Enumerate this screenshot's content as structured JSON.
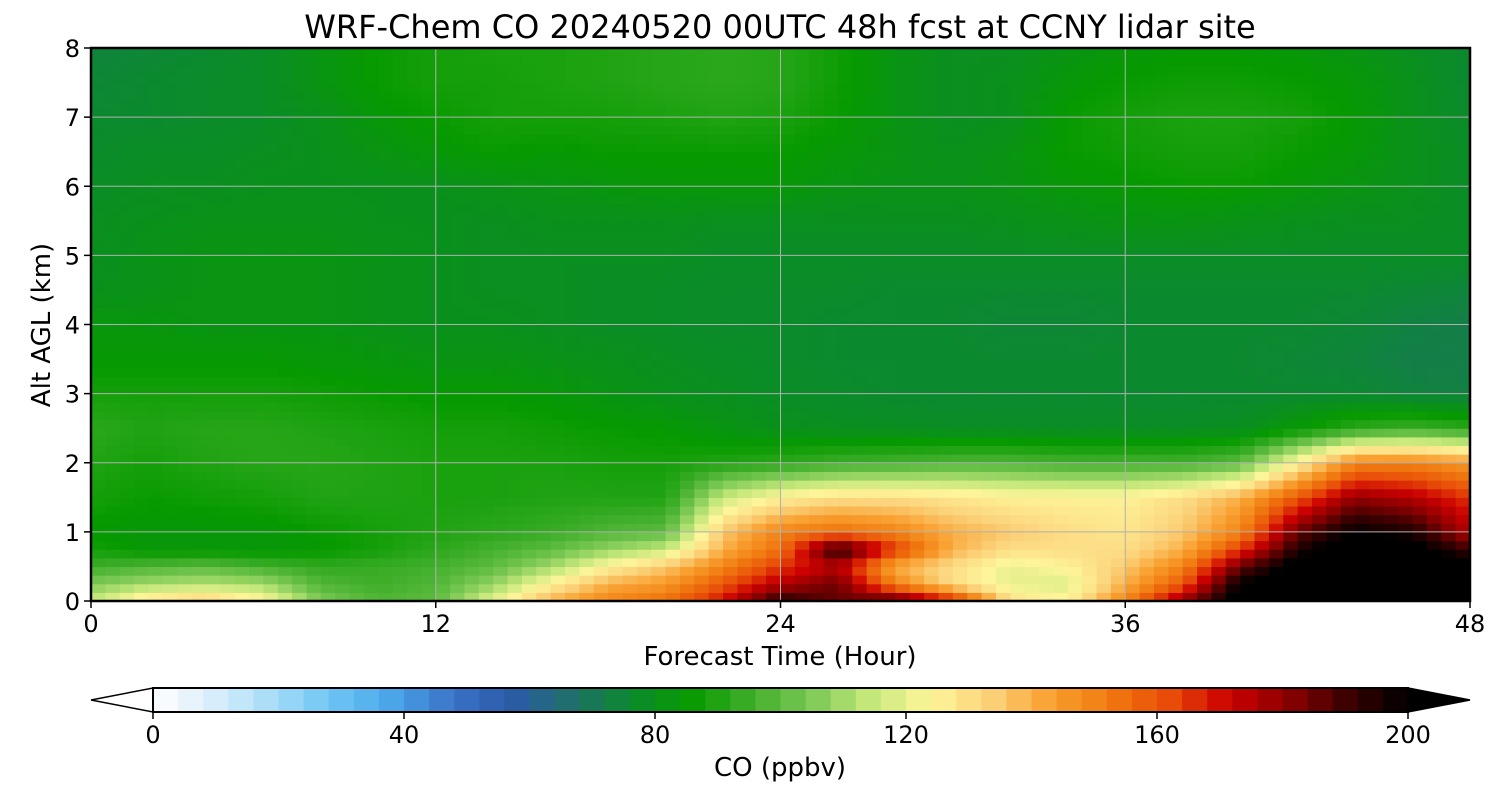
{
  "chart_data": {
    "type": "heatmap",
    "title": "WRF-Chem CO  20240520 00UTC 48h fcst at CCNY lidar site",
    "xlabel": "Forecast Time (Hour)",
    "ylabel": "Alt AGL (km)",
    "xlim": [
      0,
      48
    ],
    "ylim": [
      0,
      8
    ],
    "xticks": [
      0,
      12,
      24,
      36,
      48
    ],
    "yticks": [
      0,
      1,
      2,
      3,
      4,
      5,
      6,
      7,
      8
    ],
    "grid": true,
    "colorbar": {
      "label": "CO  (ppbv)",
      "range": [
        0,
        200
      ],
      "ticks": [
        0,
        40,
        80,
        120,
        160,
        200
      ],
      "orientation": "horizontal",
      "extend": "both",
      "colors": [
        "#ffffff",
        "#d9eefb",
        "#a7dcf8",
        "#6cc5f2",
        "#4aa6e8",
        "#3b73c9",
        "#2a5aa8",
        "#1f6f6a",
        "#0b8a2e",
        "#079a00",
        "#3fae2a",
        "#7cc955",
        "#c5e87a",
        "#fef59a",
        "#fbd27a",
        "#f9a030",
        "#f07a10",
        "#e84d08",
        "#cc0000",
        "#8a0000",
        "#3a0000",
        "#000000"
      ]
    },
    "x_hours": [
      0,
      2,
      4,
      6,
      8,
      10,
      12,
      14,
      16,
      18,
      20,
      22,
      24,
      26,
      28,
      30,
      32,
      34,
      36,
      38,
      40,
      42,
      44,
      46,
      48
    ],
    "y_km": [
      0,
      0.25,
      0.5,
      0.75,
      1,
      1.5,
      2,
      2.5,
      3,
      3.5,
      4,
      4.5,
      5,
      5.5,
      6,
      6.5,
      7,
      7.5,
      8
    ],
    "co_ppbv": [
      [
        115,
        130,
        135,
        125,
        105,
        98,
        100,
        120,
        140,
        150,
        155,
        170,
        195,
        185,
        190,
        170,
        130,
        125,
        150,
        180,
        205,
        210,
        210,
        210,
        210
      ],
      [
        105,
        110,
        112,
        110,
        98,
        95,
        98,
        108,
        125,
        140,
        145,
        160,
        175,
        185,
        150,
        130,
        120,
        118,
        140,
        160,
        200,
        210,
        210,
        210,
        210
      ],
      [
        95,
        98,
        100,
        96,
        93,
        94,
        96,
        100,
        110,
        125,
        135,
        150,
        165,
        175,
        140,
        130,
        120,
        125,
        135,
        150,
        185,
        205,
        210,
        210,
        205
      ],
      [
        88,
        84,
        84,
        84,
        85,
        88,
        92,
        96,
        100,
        108,
        115,
        140,
        155,
        195,
        165,
        140,
        130,
        130,
        130,
        140,
        165,
        195,
        210,
        205,
        190
      ],
      [
        85,
        84,
        84,
        84,
        86,
        88,
        90,
        92,
        94,
        98,
        100,
        135,
        150,
        155,
        150,
        140,
        135,
        130,
        128,
        135,
        150,
        185,
        200,
        195,
        175
      ],
      [
        88,
        86,
        87,
        88,
        90,
        90,
        89,
        89,
        90,
        90,
        90,
        115,
        125,
        130,
        130,
        128,
        125,
        125,
        125,
        130,
        140,
        160,
        180,
        175,
        165
      ],
      [
        90,
        88,
        90,
        91,
        91,
        90,
        89,
        89,
        89,
        88,
        88,
        90,
        92,
        95,
        96,
        98,
        98,
        96,
        96,
        96,
        100,
        125,
        150,
        150,
        145
      ],
      [
        92,
        90,
        91,
        91,
        90,
        89,
        88,
        88,
        87,
        86,
        85,
        82,
        80,
        79,
        79,
        78,
        78,
        78,
        78,
        78,
        79,
        85,
        92,
        95,
        92
      ],
      [
        88,
        88,
        88,
        88,
        87,
        86,
        85,
        85,
        84,
        82,
        80,
        79,
        78,
        77,
        76,
        76,
        76,
        76,
        76,
        76,
        76,
        76,
        76,
        74,
        73
      ],
      [
        85,
        85,
        85,
        85,
        84,
        83,
        82,
        82,
        81,
        80,
        79,
        78,
        77,
        76,
        76,
        76,
        76,
        76,
        76,
        76,
        76,
        75,
        74,
        72,
        72
      ],
      [
        83,
        83,
        82,
        82,
        82,
        81,
        80,
        80,
        79,
        78,
        78,
        77,
        77,
        76,
        76,
        76,
        75,
        75,
        76,
        76,
        76,
        76,
        75,
        73,
        72
      ],
      [
        80,
        81,
        82,
        82,
        82,
        81,
        80,
        79,
        79,
        78,
        78,
        77,
        77,
        77,
        76,
        76,
        76,
        76,
        76,
        76,
        76,
        76,
        76,
        75,
        74
      ],
      [
        79,
        81,
        82,
        82,
        82,
        81,
        80,
        79,
        79,
        79,
        79,
        78,
        78,
        78,
        78,
        78,
        78,
        78,
        78,
        78,
        78,
        78,
        78,
        78,
        78
      ],
      [
        79,
        80,
        81,
        81,
        81,
        80,
        80,
        79,
        80,
        80,
        80,
        79,
        79,
        79,
        79,
        79,
        80,
        81,
        82,
        82,
        81,
        80,
        79,
        79,
        78
      ],
      [
        78,
        79,
        79,
        80,
        80,
        80,
        80,
        81,
        82,
        83,
        84,
        84,
        84,
        82,
        81,
        81,
        82,
        84,
        85,
        86,
        86,
        84,
        82,
        80,
        78
      ],
      [
        77,
        78,
        78,
        79,
        80,
        82,
        84,
        86,
        85,
        86,
        86,
        86,
        86,
        84,
        82,
        80,
        82,
        86,
        87,
        88,
        88,
        86,
        84,
        80,
        78
      ],
      [
        76,
        76,
        77,
        78,
        80,
        84,
        86,
        88,
        88,
        88,
        89,
        90,
        89,
        86,
        82,
        79,
        80,
        86,
        88,
        89,
        89,
        88,
        85,
        80,
        77
      ],
      [
        75,
        76,
        77,
        78,
        82,
        86,
        88,
        88,
        89,
        90,
        91,
        92,
        91,
        87,
        82,
        79,
        80,
        84,
        86,
        87,
        87,
        86,
        84,
        80,
        76
      ],
      [
        74,
        75,
        76,
        78,
        82,
        86,
        88,
        89,
        89,
        90,
        91,
        92,
        91,
        87,
        82,
        79,
        79,
        82,
        84,
        85,
        85,
        84,
        82,
        79,
        76
      ]
    ]
  }
}
